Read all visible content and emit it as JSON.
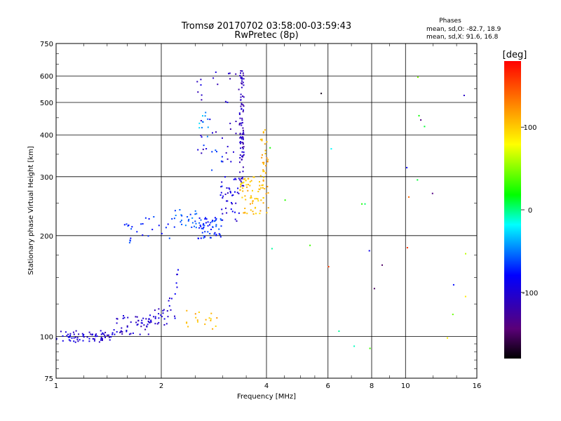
{
  "chart_data": {
    "type": "scatter",
    "title": "Tromsø 20170702 03:58:00-03:59:43",
    "subtitle": "RwPretec (8p)",
    "xlabel": "Frequency [MHz]",
    "ylabel": "Stationary phase Virtual Height [km]",
    "x_scale": "log",
    "y_scale": "log",
    "xlim": [
      1,
      16
    ],
    "ylim": [
      75,
      750
    ],
    "x_ticks": [
      "1",
      "2",
      "4",
      "6",
      "8",
      "10",
      "16"
    ],
    "y_ticks": [
      "75",
      "100",
      "200",
      "300",
      "400",
      "500",
      "600",
      "750"
    ],
    "grid": true,
    "phase_info": {
      "heading": "Phases",
      "line_o": "mean, sd,O: -82.7, 18.9",
      "line_x": "mean, sd,X:  91.6, 16.8"
    },
    "colorbar": {
      "label": "[deg]",
      "range": [
        -180,
        180
      ],
      "ticks": [
        "100",
        "0",
        "-100"
      ],
      "tick_values": [
        100,
        0,
        -100
      ]
    },
    "point_groups": [
      {
        "x": [
          1.0,
          1.45
        ],
        "y": [
          96,
          104
        ],
        "color_deg": -100,
        "count": 70
      },
      {
        "x": [
          1.45,
          1.85
        ],
        "y": [
          101,
          116
        ],
        "color_deg": -105,
        "count": 50
      },
      {
        "x": [
          1.85,
          2.1
        ],
        "y": [
          108,
          122
        ],
        "color_deg": -100,
        "count": 25
      },
      {
        "x": [
          2.1,
          2.2
        ],
        "y": [
          108,
          135
        ],
        "color_deg": -95,
        "count": 8
      },
      {
        "x": [
          2.2,
          2.25
        ],
        "y": [
          135,
          160
        ],
        "color_deg": -90,
        "count": 5
      },
      {
        "x": [
          2.35,
          2.9
        ],
        "y": [
          105,
          120
        ],
        "color_deg": 110,
        "count": 18
      },
      {
        "x": [
          1.55,
          1.65
        ],
        "y": [
          190,
          220
        ],
        "color_deg": -70,
        "count": 10
      },
      {
        "x": [
          1.7,
          2.15
        ],
        "y": [
          196,
          228
        ],
        "color_deg": -75,
        "count": 15
      },
      {
        "x": [
          2.15,
          2.55
        ],
        "y": [
          210,
          240
        ],
        "color_deg": -60,
        "count": 25
      },
      {
        "x": [
          2.55,
          3.0
        ],
        "y": [
          196,
          230
        ],
        "color_deg": -70,
        "count": 55
      },
      {
        "x": [
          2.95,
          3.35
        ],
        "y": [
          220,
          300
        ],
        "color_deg": -95,
        "count": 40
      },
      {
        "x": [
          3.35,
          3.45
        ],
        "y": [
          280,
          640
        ],
        "color_deg": -110,
        "count": 90
      },
      {
        "x": [
          3.35,
          4.05
        ],
        "y": [
          232,
          300
        ],
        "color_deg": 105,
        "count": 75
      },
      {
        "x": [
          3.85,
          4.05
        ],
        "y": [
          300,
          420
        ],
        "color_deg": 110,
        "count": 25
      },
      {
        "x": [
          2.5,
          3.4
        ],
        "y": [
          330,
          630
        ],
        "color_deg": -105,
        "count": 40
      },
      {
        "x": [
          2.55,
          2.75
        ],
        "y": [
          420,
          470
        ],
        "color_deg": -40,
        "count": 10
      },
      {
        "x": [
          2.6,
          3.0
        ],
        "y": [
          270,
          400
        ],
        "color_deg": -60,
        "count": 10
      },
      {
        "x": [
          4.0,
          16.0
        ],
        "y": [
          90,
          620
        ],
        "color_deg": 0,
        "count": 30
      }
    ]
  }
}
